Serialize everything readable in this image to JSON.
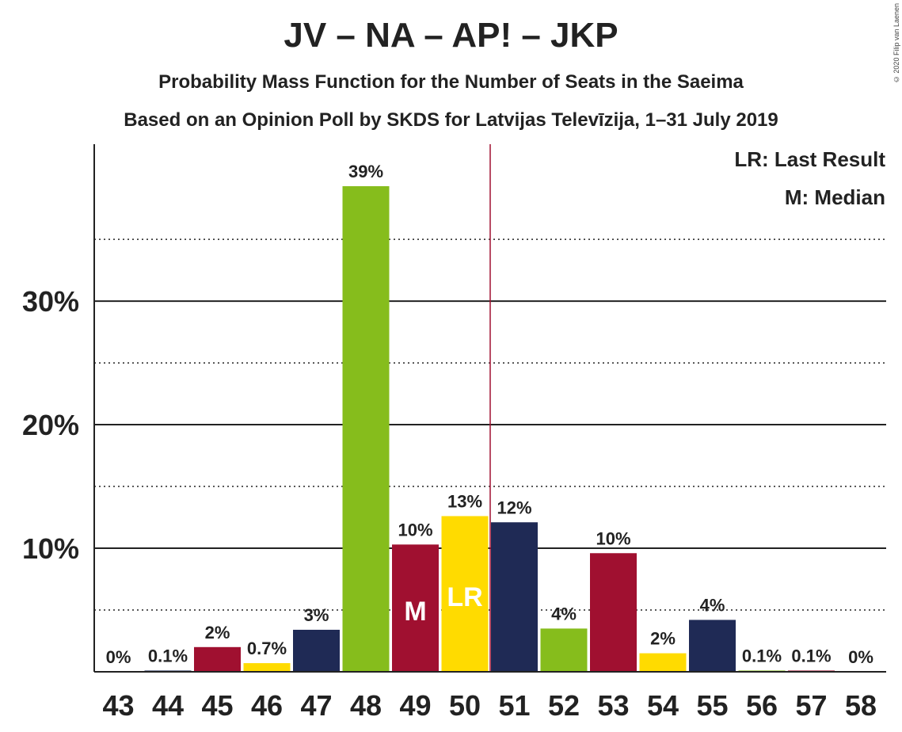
{
  "title": "JV – NA – AP! – JKP",
  "subtitle1": "Probability Mass Function for the Number of Seats in the Saeima",
  "subtitle2": "Based on an Opinion Poll by SKDS for Latvijas Televīzija, 1–31 July 2019",
  "copyright": "© 2020 Filip van Laenen",
  "legend": {
    "lr": "LR: Last Result",
    "m": "M: Median"
  },
  "colors": {
    "dark_red": "#A01030",
    "navy": "#1F2A55",
    "green": "#86BD1C",
    "yellow": "#FFDB00",
    "marker_line": "#A01030"
  },
  "chart_data": {
    "type": "bar",
    "categories": [
      "43",
      "44",
      "45",
      "46",
      "47",
      "48",
      "49",
      "50",
      "51",
      "52",
      "53",
      "54",
      "55",
      "56",
      "57",
      "58"
    ],
    "values": [
      0,
      0.1,
      2,
      0.7,
      3.4,
      39.3,
      10.3,
      12.6,
      12.1,
      3.5,
      9.6,
      1.5,
      4.2,
      0.1,
      0.1,
      0
    ],
    "labels": [
      "0%",
      "0.1%",
      "2%",
      "0.7%",
      "3%",
      "39%",
      "10%",
      "13%",
      "12%",
      "4%",
      "10%",
      "2%",
      "4%",
      "0.1%",
      "0.1%",
      "0%"
    ],
    "bar_colors": [
      "#A01030",
      "#1F2A55",
      "#A01030",
      "#FFDB00",
      "#1F2A55",
      "#86BD1C",
      "#A01030",
      "#FFDB00",
      "#1F2A55",
      "#86BD1C",
      "#A01030",
      "#FFDB00",
      "#1F2A55",
      "#86BD1C",
      "#A01030",
      "#FFDB00"
    ],
    "median_index": 6,
    "median_text": "M",
    "last_result_index": 7,
    "last_result_text": "LR",
    "majority_line_between": [
      "50",
      "51"
    ],
    "yticks": [
      10,
      20,
      30
    ],
    "ytick_labels": [
      "10%",
      "20%",
      "30%"
    ],
    "ygrid_dotted": [
      5,
      15,
      25,
      35
    ],
    "ylim": [
      0,
      42.7
    ]
  }
}
